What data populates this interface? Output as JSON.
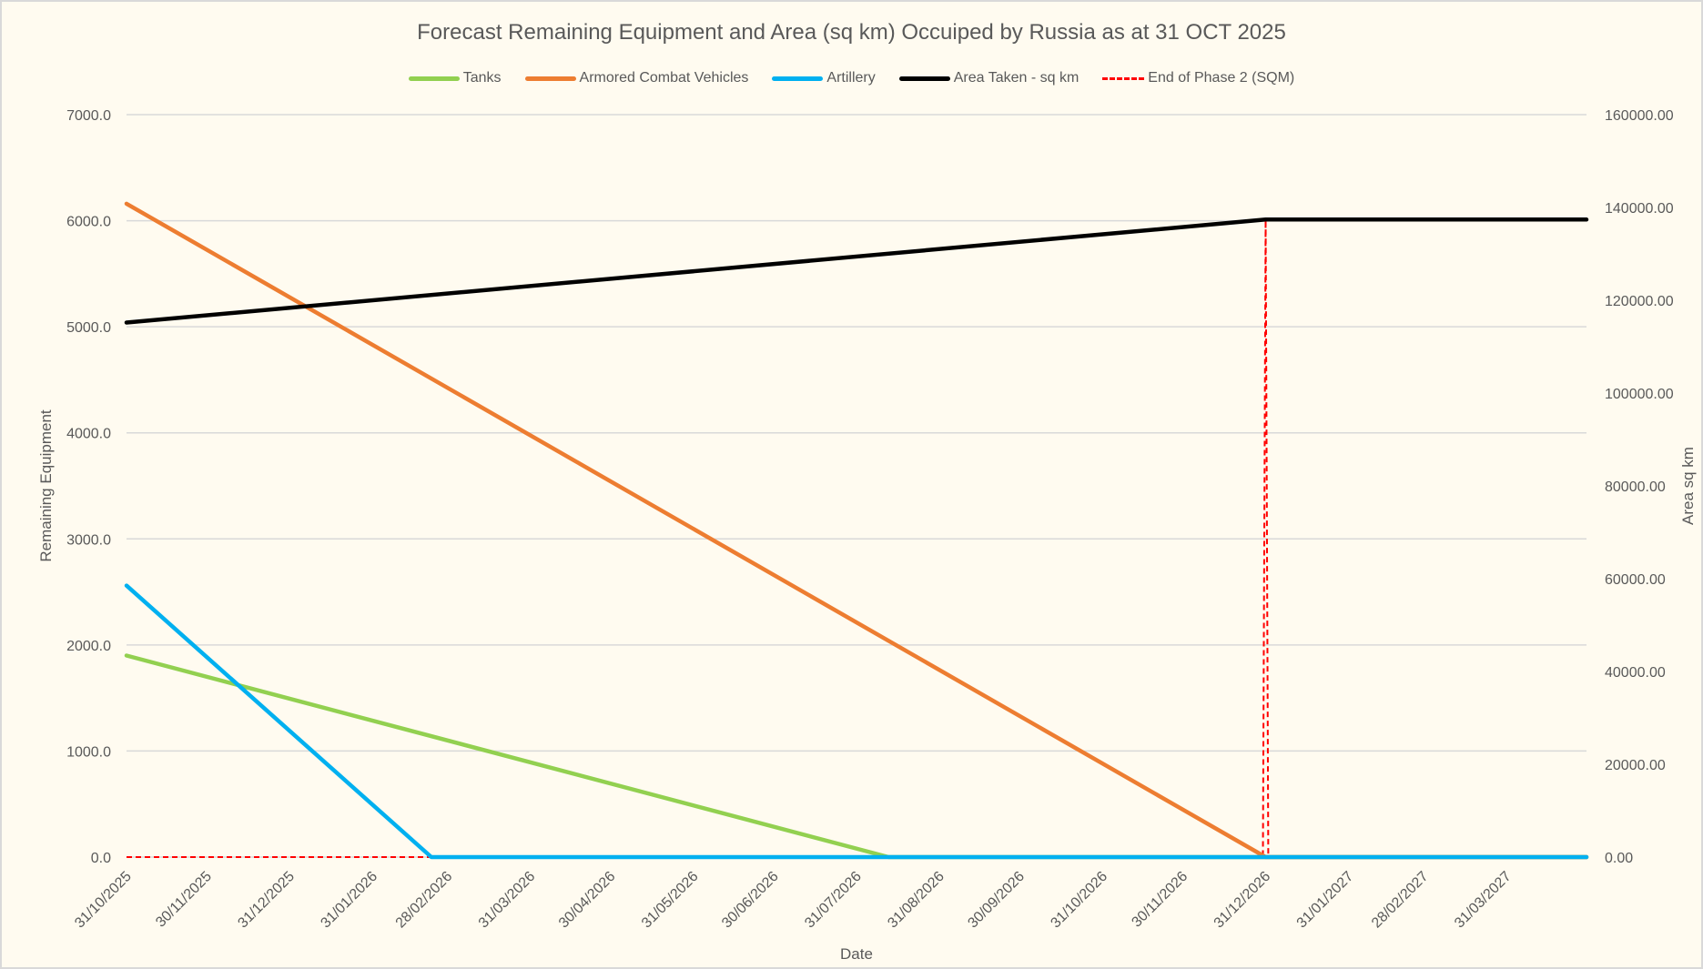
{
  "chart_data": {
    "type": "line",
    "title": "Forecast Remaining Equipment and Area (sq km) Occuiped by Russia as at 31 OCT 2025",
    "xlabel": "Date",
    "ylabel": "Remaining Equipment",
    "y2label": "Area sq km",
    "xlim": [
      "2025-10-31",
      "2027-04-30"
    ],
    "ylim": [
      0,
      7000
    ],
    "y2lim": [
      0,
      160000
    ],
    "grid": true,
    "legend_position": "top",
    "x_tick_labels": [
      "31/10/2025",
      "30/11/2025",
      "31/12/2025",
      "31/01/2026",
      "28/02/2026",
      "31/03/2026",
      "30/04/2026",
      "31/05/2026",
      "30/06/2026",
      "31/07/2026",
      "31/08/2026",
      "30/09/2026",
      "31/10/2026",
      "30/11/2026",
      "31/12/2026",
      "31/01/2027",
      "28/02/2027",
      "31/03/2027"
    ],
    "x_tick_dates": [
      "2025-10-31",
      "2025-11-30",
      "2025-12-31",
      "2026-01-31",
      "2026-02-28",
      "2026-03-31",
      "2026-04-30",
      "2026-05-31",
      "2026-06-30",
      "2026-07-31",
      "2026-08-31",
      "2026-09-30",
      "2026-10-31",
      "2026-11-30",
      "2026-12-31",
      "2027-01-31",
      "2027-02-28",
      "2027-03-31"
    ],
    "y_tick_labels": [
      "0.0",
      "1000.0",
      "2000.0",
      "3000.0",
      "4000.0",
      "5000.0",
      "6000.0",
      "7000.0"
    ],
    "y2_tick_labels": [
      "0.00",
      "20000.00",
      "40000.00",
      "60000.00",
      "80000.00",
      "100000.00",
      "120000.00",
      "140000.00",
      "160000.00"
    ],
    "series": [
      {
        "name": "Tanks",
        "color": "#92d050",
        "axis": "left",
        "dash": false,
        "points": [
          [
            "2025-10-31",
            1900
          ],
          [
            "2026-08-12",
            0
          ],
          [
            "2027-04-30",
            0
          ]
        ]
      },
      {
        "name": "Armored Combat Vehicles",
        "color": "#ed7d31",
        "axis": "left",
        "dash": false,
        "points": [
          [
            "2025-10-31",
            6160
          ],
          [
            "2026-12-31",
            0
          ],
          [
            "2027-04-30",
            0
          ]
        ]
      },
      {
        "name": "Artillery",
        "color": "#00b0f0",
        "axis": "left",
        "dash": false,
        "points": [
          [
            "2025-10-31",
            2560
          ],
          [
            "2026-02-22",
            0
          ],
          [
            "2027-04-30",
            0
          ]
        ]
      },
      {
        "name": "Area Taken - sq km",
        "color": "#000000",
        "axis": "right",
        "dash": false,
        "points": [
          [
            "2025-10-31",
            115200
          ],
          [
            "2026-12-31",
            137400
          ],
          [
            "2027-04-30",
            137400
          ]
        ]
      },
      {
        "name": "End of Phase 2 (SQM)",
        "color": "#ff0000",
        "axis": "right",
        "dash": true,
        "points": [
          [
            "2025-10-31",
            0
          ],
          [
            "2026-12-30",
            0
          ],
          [
            "2026-12-31",
            137400
          ],
          [
            "2027-01-01",
            0
          ],
          [
            "2027-04-30",
            0
          ]
        ]
      }
    ]
  }
}
